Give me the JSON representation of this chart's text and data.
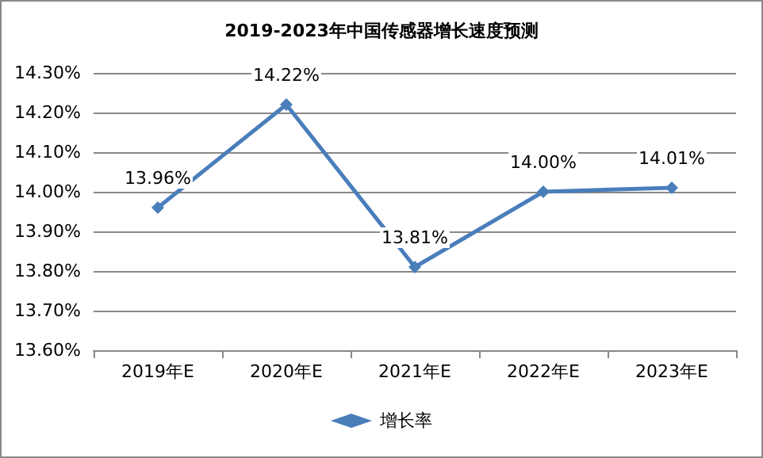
{
  "chart_data": {
    "type": "line",
    "title": "2019-2023年中国传感器增长速度预测",
    "categories": [
      "2019年E",
      "2020年E",
      "2021年E",
      "2022年E",
      "2023年E"
    ],
    "series": [
      {
        "name": "增长率",
        "color": "#4a7ebb",
        "values": [
          13.96,
          14.22,
          13.81,
          14.0,
          14.01
        ],
        "value_labels": [
          "13.96%",
          "14.22%",
          "13.81%",
          "14.00%",
          "14.01%"
        ]
      }
    ],
    "ylim": [
      13.6,
      14.3
    ],
    "yticks": [
      {
        "value": 13.6,
        "label": "13.60%"
      },
      {
        "value": 13.7,
        "label": "13.70%"
      },
      {
        "value": 13.8,
        "label": "13.80%"
      },
      {
        "value": 13.9,
        "label": "13.90%"
      },
      {
        "value": 14.0,
        "label": "14.00%"
      },
      {
        "value": 14.1,
        "label": "14.10%"
      },
      {
        "value": 14.2,
        "label": "14.20%"
      },
      {
        "value": 14.3,
        "label": "14.30%"
      }
    ],
    "grid": "y",
    "legend": "bottom",
    "marker": "diamond",
    "line_style": "solid"
  }
}
